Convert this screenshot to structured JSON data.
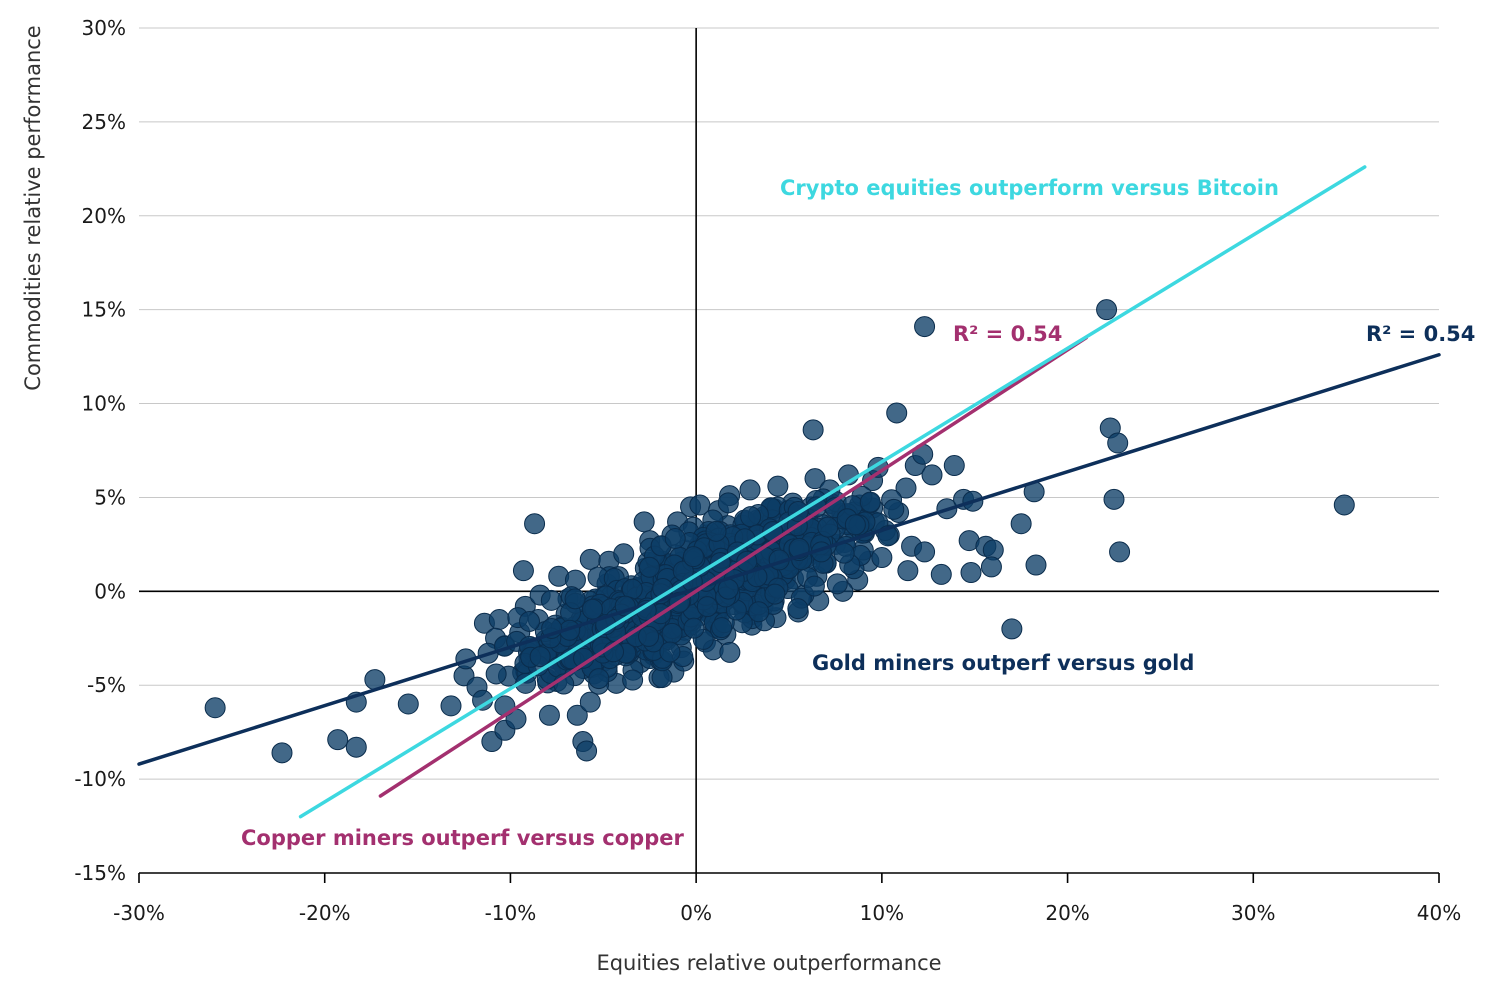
{
  "chart_data": {
    "type": "scatter",
    "title": "",
    "xlabel": "Equities relative outperformance",
    "ylabel": "Commodities relative performance",
    "xlim": [
      -30,
      40
    ],
    "ylim": [
      -15,
      30
    ],
    "x_ticks": [
      -30,
      -20,
      -10,
      0,
      10,
      20,
      30,
      40
    ],
    "y_ticks": [
      -15,
      -10,
      -5,
      0,
      5,
      10,
      15,
      20,
      25,
      30
    ],
    "x_tick_labels": [
      "-30%",
      "-20%",
      "-10%",
      "0%",
      "10%",
      "20%",
      "30%",
      "40%"
    ],
    "y_tick_labels": [
      "-15%",
      "-10%",
      "-5%",
      "0%",
      "5%",
      "10%",
      "15%",
      "20%",
      "25%",
      "30%"
    ],
    "grid": "horizontal",
    "colors": {
      "points": "#0d3d66",
      "gold_line": "#0d2f5a",
      "copper_line": "#a3306f",
      "crypto_line": "#3dd8e0"
    },
    "points": [
      [
        -25.9,
        -6.2
      ],
      [
        -22.3,
        -8.6
      ],
      [
        -19.3,
        -7.9
      ],
      [
        -18.3,
        -8.3
      ],
      [
        -18.3,
        -5.9
      ],
      [
        -17.3,
        -4.7
      ],
      [
        -15.5,
        -6.0
      ],
      [
        -13.2,
        -6.1
      ],
      [
        -12.5,
        -4.5
      ],
      [
        -12.4,
        -3.6
      ],
      [
        -11.8,
        -5.1
      ],
      [
        -11.5,
        -5.8
      ],
      [
        -11.0,
        -8.0
      ],
      [
        -10.3,
        -7.4
      ],
      [
        -10.3,
        -6.1
      ],
      [
        -9.7,
        -6.8
      ],
      [
        -8.7,
        3.6
      ],
      [
        -9.3,
        1.1
      ],
      [
        -7.9,
        -6.6
      ],
      [
        -6.4,
        -6.6
      ],
      [
        -6.1,
        -8.0
      ],
      [
        -5.9,
        -8.5
      ],
      [
        -5.7,
        -5.9
      ],
      [
        -5.7,
        1.7
      ],
      [
        -2.8,
        3.7
      ],
      [
        -1.0,
        3.7
      ],
      [
        -0.3,
        4.5
      ],
      [
        0.2,
        4.6
      ],
      [
        1.2,
        4.3
      ],
      [
        1.8,
        5.1
      ],
      [
        2.9,
        5.4
      ],
      [
        4.4,
        5.6
      ],
      [
        5.2,
        4.7
      ],
      [
        6.2,
        4.5
      ],
      [
        6.3,
        8.6
      ],
      [
        6.4,
        6.0
      ],
      [
        7.2,
        5.4
      ],
      [
        8.2,
        6.2
      ],
      [
        9.5,
        5.9
      ],
      [
        9.8,
        6.6
      ],
      [
        10.8,
        9.5
      ],
      [
        11.3,
        5.5
      ],
      [
        11.8,
        6.7
      ],
      [
        12.2,
        7.3
      ],
      [
        12.7,
        6.2
      ],
      [
        13.5,
        4.4
      ],
      [
        13.9,
        6.7
      ],
      [
        14.4,
        4.9
      ],
      [
        14.7,
        2.7
      ],
      [
        14.9,
        4.8
      ],
      [
        15.6,
        2.4
      ],
      [
        16.0,
        2.2
      ],
      [
        15.9,
        1.3
      ],
      [
        14.8,
        1.0
      ],
      [
        13.2,
        0.9
      ],
      [
        11.4,
        1.1
      ],
      [
        12.3,
        14.1
      ],
      [
        17.0,
        -2.0
      ],
      [
        17.5,
        3.6
      ],
      [
        18.2,
        5.3
      ],
      [
        18.3,
        1.4
      ],
      [
        22.1,
        15.0
      ],
      [
        22.3,
        8.7
      ],
      [
        22.7,
        7.9
      ],
      [
        22.5,
        4.9
      ],
      [
        22.8,
        2.1
      ],
      [
        34.9,
        4.6
      ],
      [
        -1.2,
        -4.3
      ],
      [
        -2.0,
        -4.6
      ],
      [
        -3.0,
        -3.8
      ],
      [
        -4.3,
        -4.9
      ],
      [
        -7.5,
        -4.8
      ],
      [
        -9.2,
        -4.2
      ],
      [
        -10.3,
        -2.9
      ],
      [
        -11.4,
        -1.7
      ],
      [
        -10.6,
        -1.5
      ],
      [
        -9.2,
        -0.8
      ],
      [
        -8.4,
        -0.2
      ],
      [
        -7.4,
        0.8
      ],
      [
        -6.5,
        0.6
      ],
      [
        -4.7,
        1.6
      ],
      [
        -3.9,
        2.0
      ],
      [
        -2.5,
        2.7
      ],
      [
        -1.3,
        3.0
      ],
      [
        0.6,
        3.0
      ],
      [
        1.7,
        3.5
      ],
      [
        3.3,
        3.8
      ],
      [
        4.6,
        3.6
      ],
      [
        6.1,
        3.2
      ],
      [
        7.3,
        3.8
      ],
      [
        8.4,
        3.4
      ],
      [
        9.6,
        3.7
      ],
      [
        10.4,
        3.0
      ],
      [
        11.6,
        2.4
      ],
      [
        12.3,
        2.1
      ],
      [
        9.3,
        1.6
      ],
      [
        8.7,
        0.6
      ],
      [
        7.9,
        0.0
      ],
      [
        6.6,
        -0.5
      ],
      [
        5.5,
        -1.1
      ],
      [
        4.3,
        -1.4
      ],
      [
        3.0,
        -1.8
      ],
      [
        1.6,
        -2.3
      ],
      [
        0.5,
        -2.7
      ],
      [
        -0.8,
        -3.0
      ],
      [
        -2.3,
        -3.4
      ],
      [
        -3.6,
        -3.3
      ],
      [
        -5.2,
        -3.4
      ],
      [
        -6.8,
        -3.0
      ],
      [
        -8.1,
        -2.6
      ],
      [
        -9.5,
        -2.2
      ],
      [
        -10.8,
        -2.5
      ],
      [
        -11.2,
        -3.3
      ],
      [
        -9.0,
        -3.6
      ],
      [
        -7.0,
        -4.0
      ],
      [
        -5.5,
        -4.4
      ],
      [
        -3.4,
        -4.2
      ],
      [
        -6.0,
        -2.0
      ],
      [
        -4.5,
        -1.5
      ],
      [
        -3.0,
        -1.0
      ],
      [
        -1.5,
        -0.5
      ],
      [
        0.0,
        0.0
      ],
      [
        1.5,
        0.5
      ],
      [
        3.0,
        1.0
      ],
      [
        4.5,
        1.5
      ],
      [
        6.0,
        2.0
      ],
      [
        7.5,
        2.5
      ],
      [
        -7.0,
        -1.2
      ],
      [
        -5.0,
        -0.3
      ],
      [
        -2.0,
        0.8
      ],
      [
        1.0,
        1.8
      ],
      [
        3.5,
        2.4
      ],
      [
        5.5,
        2.9
      ],
      [
        8.0,
        2.6
      ],
      [
        -6.5,
        -2.7
      ],
      [
        -4.0,
        -2.6
      ],
      [
        -1.0,
        -1.8
      ],
      [
        2.0,
        -0.7
      ],
      [
        4.0,
        0.2
      ],
      [
        6.5,
        0.8
      ],
      [
        8.5,
        1.2
      ],
      [
        -8.5,
        -1.5
      ],
      [
        -3.5,
        0.3
      ],
      [
        -0.5,
        1.2
      ],
      [
        2.5,
        2.0
      ],
      [
        5.0,
        2.6
      ],
      [
        7.0,
        1.5
      ],
      [
        0.8,
        -1.2
      ],
      [
        -2.5,
        -2.0
      ],
      [
        -5.5,
        -1.0
      ],
      [
        -1.8,
        1.6
      ],
      [
        1.2,
        2.6
      ],
      [
        3.8,
        3.0
      ],
      [
        6.8,
        3.0
      ],
      [
        2.2,
        0.3
      ],
      [
        -0.2,
        -0.9
      ],
      [
        -4.2,
        -3.0
      ],
      [
        9.0,
        2.2
      ],
      [
        10.0,
        1.8
      ],
      [
        -2.8,
        -0.2
      ],
      [
        0.3,
        0.6
      ],
      [
        2.8,
        1.4
      ],
      [
        4.8,
        0.6
      ],
      [
        5.8,
        -0.2
      ],
      [
        3.6,
        -0.8
      ],
      [
        1.0,
        -1.9
      ],
      [
        -1.6,
        -2.6
      ],
      [
        -3.8,
        -1.8
      ],
      [
        -6.2,
        -1.5
      ],
      [
        -7.8,
        -3.4
      ],
      [
        -9.6,
        -1.4
      ],
      [
        7.6,
        0.4
      ],
      [
        -0.6,
        2.2
      ],
      [
        0.9,
        3.8
      ],
      [
        -1.9,
        2.4
      ],
      [
        4.2,
        4.4
      ],
      [
        5.9,
        3.8
      ],
      [
        8.8,
        4.6
      ],
      [
        10.9,
        4.2
      ],
      [
        -4.8,
        0.4
      ],
      [
        -6.9,
        -0.4
      ],
      [
        -8.8,
        -3.0
      ]
    ],
    "regression_lines": [
      {
        "id": "gold",
        "x": [
          -30,
          40
        ],
        "y": [
          -9.2,
          12.6
        ]
      },
      {
        "id": "copper",
        "x": [
          -17.0,
          21.0
        ],
        "y": [
          -10.9,
          13.5
        ]
      },
      {
        "id": "crypto",
        "x": [
          -21.3,
          36.0
        ],
        "y": [
          -12.0,
          22.6
        ]
      }
    ],
    "annotations": {
      "crypto_label": "Crypto equities outperform versus Bitcoin",
      "copper_r2": "R² = 0.54",
      "gold_r2": "R² = 0.54",
      "gold_label": "Gold miners outperf versus gold",
      "copper_label": "Copper miners outperf versus copper"
    }
  }
}
